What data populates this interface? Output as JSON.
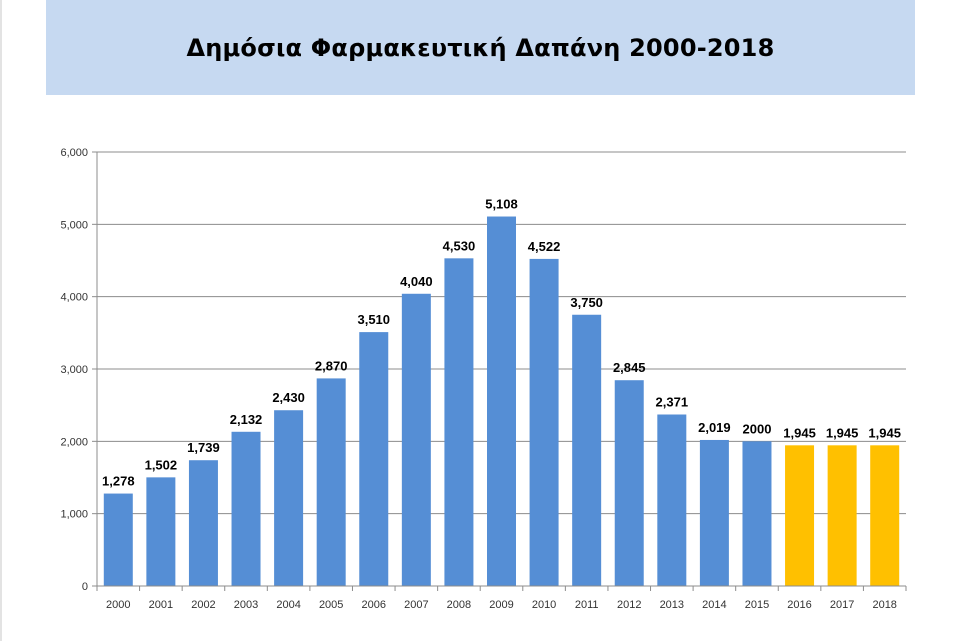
{
  "header": {
    "title": "Δημόσια Φαρμακευτική Δαπάνη 2000-2018"
  },
  "colors": {
    "title_band": "#c6d9f1",
    "bar_actual": "#558ed5",
    "bar_projected": "#ffc000",
    "gridline": "#8c8c8c"
  },
  "chart_data": {
    "type": "bar",
    "title": "Δημόσια Φαρμακευτική Δαπάνη 2000-2018",
    "xlabel": "",
    "ylabel": "",
    "categories": [
      "2000",
      "2001",
      "2002",
      "2003",
      "2004",
      "2005",
      "2006",
      "2007",
      "2008",
      "2009",
      "2010",
      "2011",
      "2012",
      "2013",
      "2014",
      "2015",
      "2016",
      "2017",
      "2018"
    ],
    "values": [
      1278,
      1502,
      1739,
      2132,
      2430,
      2870,
      3510,
      4040,
      4530,
      5108,
      4522,
      3750,
      2845,
      2371,
      2019,
      2000,
      1945,
      1945,
      1945
    ],
    "value_labels": [
      "1,278",
      "1,502",
      "1,739",
      "2,132",
      "2,430",
      "2,870",
      "3,510",
      "4,040",
      "4,530",
      "5,108",
      "4,522",
      "3,750",
      "2,845",
      "2,371",
      "2,019",
      "2000",
      "1,945",
      "1,945",
      "1,945"
    ],
    "projected_from_index": 16,
    "ylim": [
      0,
      6000
    ],
    "yticks": [
      0,
      1000,
      2000,
      3000,
      4000,
      5000,
      6000
    ],
    "ytick_labels": [
      "0",
      "1,000",
      "2,000",
      "3,000",
      "4,000",
      "5,000",
      "6,000"
    ],
    "grid": true,
    "legend": "none"
  }
}
